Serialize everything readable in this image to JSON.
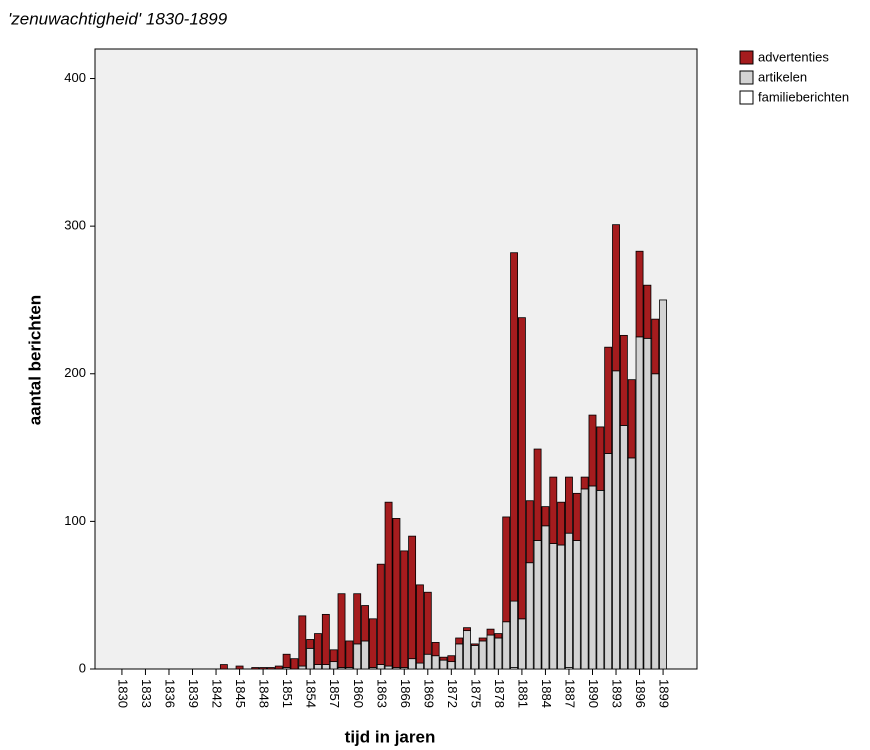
{
  "chart_data": {
    "type": "stacked-bar",
    "title": "'zenuwachtigheid' 1830-1899",
    "x_label": "tijd in jaren",
    "y_label": "aantal berichten",
    "categories": [
      "1830",
      null,
      null,
      "1833",
      null,
      null,
      "1836",
      null,
      null,
      "1839",
      null,
      null,
      "1842",
      null,
      null,
      "1845",
      null,
      null,
      "1848",
      null,
      null,
      "1851",
      null,
      null,
      "1854",
      null,
      null,
      "1857",
      null,
      null,
      "1860",
      null,
      null,
      "1863",
      null,
      null,
      "1866",
      null,
      null,
      "1869",
      null,
      null,
      "1872",
      null,
      null,
      "1875",
      null,
      null,
      "1878",
      null,
      null,
      "1881",
      null,
      null,
      "1884",
      null,
      null,
      "1887",
      null,
      null,
      "1890",
      null,
      null,
      "1893",
      null,
      null,
      "1896",
      null,
      null,
      "1899"
    ],
    "series": [
      {
        "name": "advertenties",
        "color": "#a51c1e",
        "values": [
          0,
          0,
          0,
          0,
          0,
          0,
          0,
          0,
          0,
          0,
          0,
          0,
          0,
          3,
          0,
          2,
          0,
          1,
          1,
          1,
          2,
          9,
          7,
          34,
          6,
          21,
          34,
          8,
          50,
          18,
          34,
          24,
          33,
          68,
          111,
          101,
          79,
          83,
          53,
          42,
          9,
          2,
          4,
          4,
          2,
          1,
          2,
          4,
          3,
          71,
          236,
          204,
          42,
          62,
          13,
          45,
          29,
          38,
          32,
          8,
          48,
          43,
          72,
          99,
          61,
          53,
          58,
          36,
          37,
          0
        ]
      },
      {
        "name": "artikelen",
        "color": "#d3d3d3",
        "values": [
          0,
          0,
          0,
          0,
          0,
          0,
          0,
          0,
          0,
          0,
          0,
          0,
          0,
          0,
          0,
          0,
          0,
          0,
          0,
          0,
          0,
          1,
          0,
          2,
          14,
          3,
          3,
          5,
          1,
          1,
          17,
          19,
          1,
          3,
          2,
          1,
          1,
          7,
          4,
          10,
          9,
          6,
          5,
          17,
          26,
          16,
          19,
          23,
          21,
          32,
          45,
          34,
          72,
          87,
          97,
          85,
          84,
          91,
          87,
          122,
          124,
          121,
          146,
          202,
          165,
          143,
          225,
          224,
          200,
          250
        ]
      },
      {
        "name": "familieberichten",
        "color": "#ffffff",
        "values": [
          0,
          0,
          0,
          0,
          0,
          0,
          0,
          0,
          0,
          0,
          0,
          0,
          0,
          0,
          0,
          0,
          0,
          0,
          0,
          0,
          0,
          0,
          0,
          0,
          0,
          0,
          0,
          0,
          0,
          0,
          0,
          0,
          0,
          0,
          0,
          0,
          0,
          0,
          0,
          0,
          0,
          0,
          0,
          0,
          0,
          0,
          0,
          0,
          0,
          0,
          1,
          0,
          0,
          0,
          0,
          0,
          0,
          1,
          0,
          0,
          0,
          0,
          0,
          0,
          0,
          0,
          0,
          0,
          0,
          0
        ]
      }
    ],
    "ylim": [
      0,
      420
    ],
    "yticks": [
      0,
      100,
      200,
      300,
      400
    ],
    "grid": false,
    "legend": "right"
  }
}
